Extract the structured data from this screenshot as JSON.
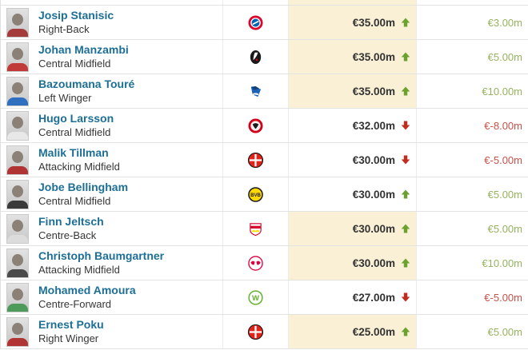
{
  "theme": {
    "link_blue": "#1d6f96",
    "highlight_beige": "#f9f0d6",
    "row_border": "#e3e3e3",
    "value_text": "#333333",
    "arrow_up_green": "#6ba22e",
    "arrow_down_red": "#c32b1e",
    "change_positive_green": "#96b35f",
    "change_negative_red": "#c75249"
  },
  "clubs": {
    "bayern-munich": {
      "colors": [
        "#dc052d",
        "#ffffff",
        "#0066b2"
      ]
    },
    "sc-freiburg": {
      "colors": [
        "#1a1a1a",
        "#ffffff",
        "#d40019"
      ]
    },
    "tsg-hoffenheim": {
      "colors": [
        "#1c63b7",
        "#ffffff",
        "#10427e"
      ]
    },
    "eintracht-frankfurt": {
      "colors": [
        "#d40019",
        "#f2f2f2",
        "#1a1a1a"
      ]
    },
    "bayer-leverkusen": {
      "colors": [
        "#e32219",
        "#1a1a1a",
        "#ffffff"
      ]
    },
    "borussia-dortmund": {
      "colors": [
        "#ffd900",
        "#1a1a1a"
      ]
    },
    "vfb-stuttgart": {
      "colors": [
        "#ffffff",
        "#d30029",
        "#fde100"
      ]
    },
    "rb-leipzig": {
      "colors": [
        "#ffffff",
        "#dd013f",
        "#002f5f"
      ]
    },
    "vfl-wolfsburg": {
      "colors": [
        "#ffffff",
        "#65b32e"
      ]
    }
  },
  "table": {
    "players": [
      {
        "name": "Josip Stanisic",
        "position": "Right-Back",
        "club": "bayern-munich",
        "value": "€35.00m",
        "trend": "up",
        "change": "€3.00m",
        "change_sign": "positive",
        "value_highlight": true,
        "shirt": "#a43c3c"
      },
      {
        "name": "Johan Manzambi",
        "position": "Central Midfield",
        "club": "sc-freiburg",
        "value": "€35.00m",
        "trend": "up",
        "change": "€5.00m",
        "change_sign": "positive",
        "value_highlight": true,
        "shirt": "#c03a3a"
      },
      {
        "name": "Bazoumana Touré",
        "position": "Left Winger",
        "club": "tsg-hoffenheim",
        "value": "€35.00m",
        "trend": "up",
        "change": "€10.00m",
        "change_sign": "positive",
        "value_highlight": true,
        "shirt": "#2f6fc0"
      },
      {
        "name": "Hugo Larsson",
        "position": "Central Midfield",
        "club": "eintracht-frankfurt",
        "value": "€32.00m",
        "trend": "down",
        "change": "€-8.00m",
        "change_sign": "negative",
        "value_highlight": false,
        "shirt": "#e8e8e8"
      },
      {
        "name": "Malik Tillman",
        "position": "Attacking Midfield",
        "club": "bayer-leverkusen",
        "value": "€30.00m",
        "trend": "down",
        "change": "€-5.00m",
        "change_sign": "negative",
        "value_highlight": false,
        "shirt": "#b03434"
      },
      {
        "name": "Jobe Bellingham",
        "position": "Central Midfield",
        "club": "borussia-dortmund",
        "value": "€30.00m",
        "trend": "up",
        "change": "€5.00m",
        "change_sign": "positive",
        "value_highlight": false,
        "shirt": "#3a3a3a"
      },
      {
        "name": "Finn Jeltsch",
        "position": "Centre-Back",
        "club": "vfb-stuttgart",
        "value": "€30.00m",
        "trend": "up",
        "change": "€5.00m",
        "change_sign": "positive",
        "value_highlight": true,
        "shirt": "#dcdcdc"
      },
      {
        "name": "Christoph Baumgartner",
        "position": "Attacking Midfield",
        "club": "rb-leipzig",
        "value": "€30.00m",
        "trend": "up",
        "change": "€10.00m",
        "change_sign": "positive",
        "value_highlight": true,
        "shirt": "#4a4a4a"
      },
      {
        "name": "Mohamed Amoura",
        "position": "Centre-Forward",
        "club": "vfl-wolfsburg",
        "value": "€27.00m",
        "trend": "down",
        "change": "€-5.00m",
        "change_sign": "negative",
        "value_highlight": false,
        "shirt": "#4e9a5a"
      },
      {
        "name": "Ernest Poku",
        "position": "Right Winger",
        "club": "bayer-leverkusen",
        "value": "€25.00m",
        "trend": "up",
        "change": "€5.00m",
        "change_sign": "positive",
        "value_highlight": true,
        "shirt": "#b03434"
      }
    ],
    "partial_top_row": {
      "value_highlight": true
    }
  }
}
